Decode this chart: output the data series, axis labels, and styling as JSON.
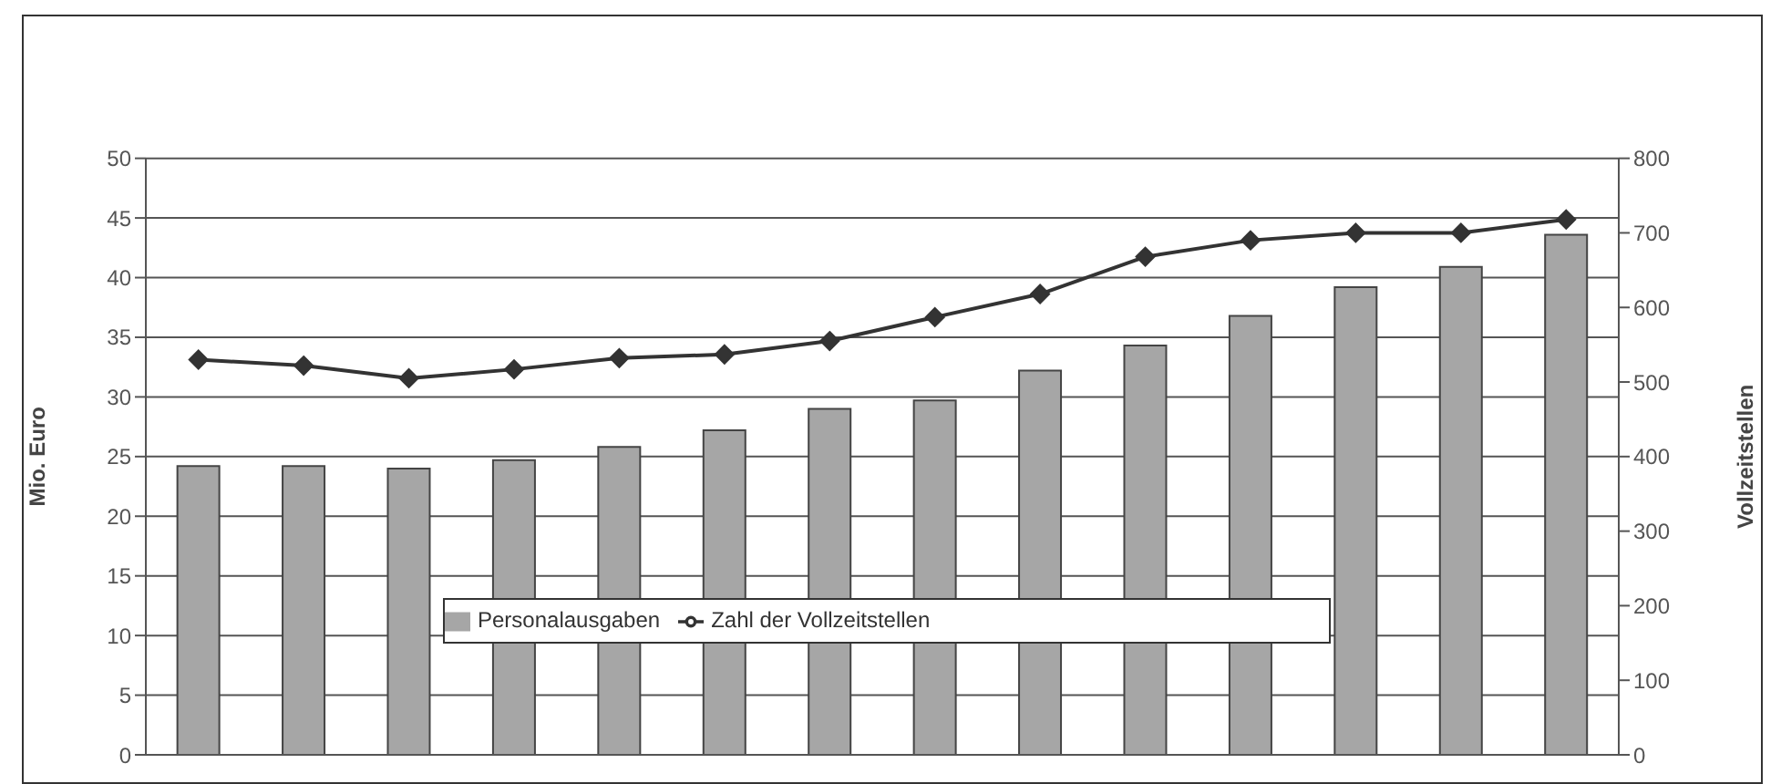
{
  "chart_data": {
    "type": "bar",
    "categories": [
      null,
      null,
      null,
      null,
      null,
      null,
      null,
      null,
      null,
      null,
      null,
      null,
      null,
      null
    ],
    "series": [
      {
        "name": "Personalausgaben",
        "color": "#a6a6a6",
        "values": [
          24.2,
          24.2,
          24.0,
          24.7,
          25.8,
          27.2,
          29.0,
          29.7,
          32.2,
          34.3,
          36.8,
          39.2,
          40.9,
          43.6
        ]
      },
      {
        "name": "Zahl der Vollzeitstellen",
        "type": "line",
        "axis": "y2",
        "color": "#333333",
        "values": [
          530,
          522,
          505,
          517,
          532,
          537,
          555,
          587,
          618,
          668,
          690,
          700,
          700,
          718
        ]
      }
    ],
    "ylabel": "Mio. Euro",
    "y2label": "Vollzeitstellen",
    "ylim": [
      0,
      50
    ],
    "yticks": [
      0,
      5,
      10,
      15,
      20,
      25,
      30,
      35,
      40,
      45,
      50
    ],
    "y2lim": [
      0,
      800
    ],
    "y2ticks": [
      0,
      100,
      200,
      300,
      400,
      500,
      600,
      700,
      800
    ],
    "grid": "y",
    "legend": "bottom",
    "marker": "diamond",
    "line_style": "solid"
  }
}
